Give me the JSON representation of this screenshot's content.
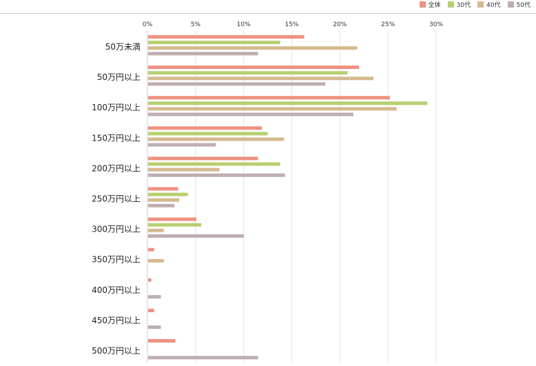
{
  "chart_data": {
    "type": "bar",
    "orientation": "horizontal",
    "title": "",
    "xlabel": "",
    "ylabel": "",
    "xlim": [
      0,
      30
    ],
    "x_ticks": [
      "0%",
      "5%",
      "10%",
      "15%",
      "20%",
      "25%",
      "30%"
    ],
    "grid": true,
    "legend_position": "top-right",
    "categories": [
      "50万未満",
      "50万円以上",
      "100万円以上",
      "150万円以上",
      "200万円以上",
      "250万円以上",
      "300万円以上",
      "350万円以上",
      "400万円以上",
      "450万円以上",
      "500万円以上"
    ],
    "series": [
      {
        "name": "全体",
        "color": "#ee9282",
        "values": [
          16.3,
          22.0,
          25.2,
          11.9,
          11.5,
          3.2,
          5.1,
          0.7,
          0.4,
          0.7,
          2.9
        ]
      },
      {
        "name": "30代",
        "color": "#b7cf6f",
        "values": [
          13.8,
          20.8,
          29.1,
          12.5,
          13.8,
          4.2,
          5.6,
          0.0,
          0.0,
          0.0,
          0.0
        ]
      },
      {
        "name": "40代",
        "color": "#d6b98f",
        "values": [
          21.8,
          23.5,
          25.9,
          14.2,
          7.5,
          3.3,
          1.7,
          1.7,
          0.0,
          0.0,
          0.0
        ]
      },
      {
        "name": "50代",
        "color": "#bfadb0",
        "values": [
          11.5,
          18.5,
          21.4,
          7.1,
          14.3,
          2.8,
          10.0,
          0.0,
          1.4,
          1.4,
          11.5
        ]
      }
    ]
  }
}
